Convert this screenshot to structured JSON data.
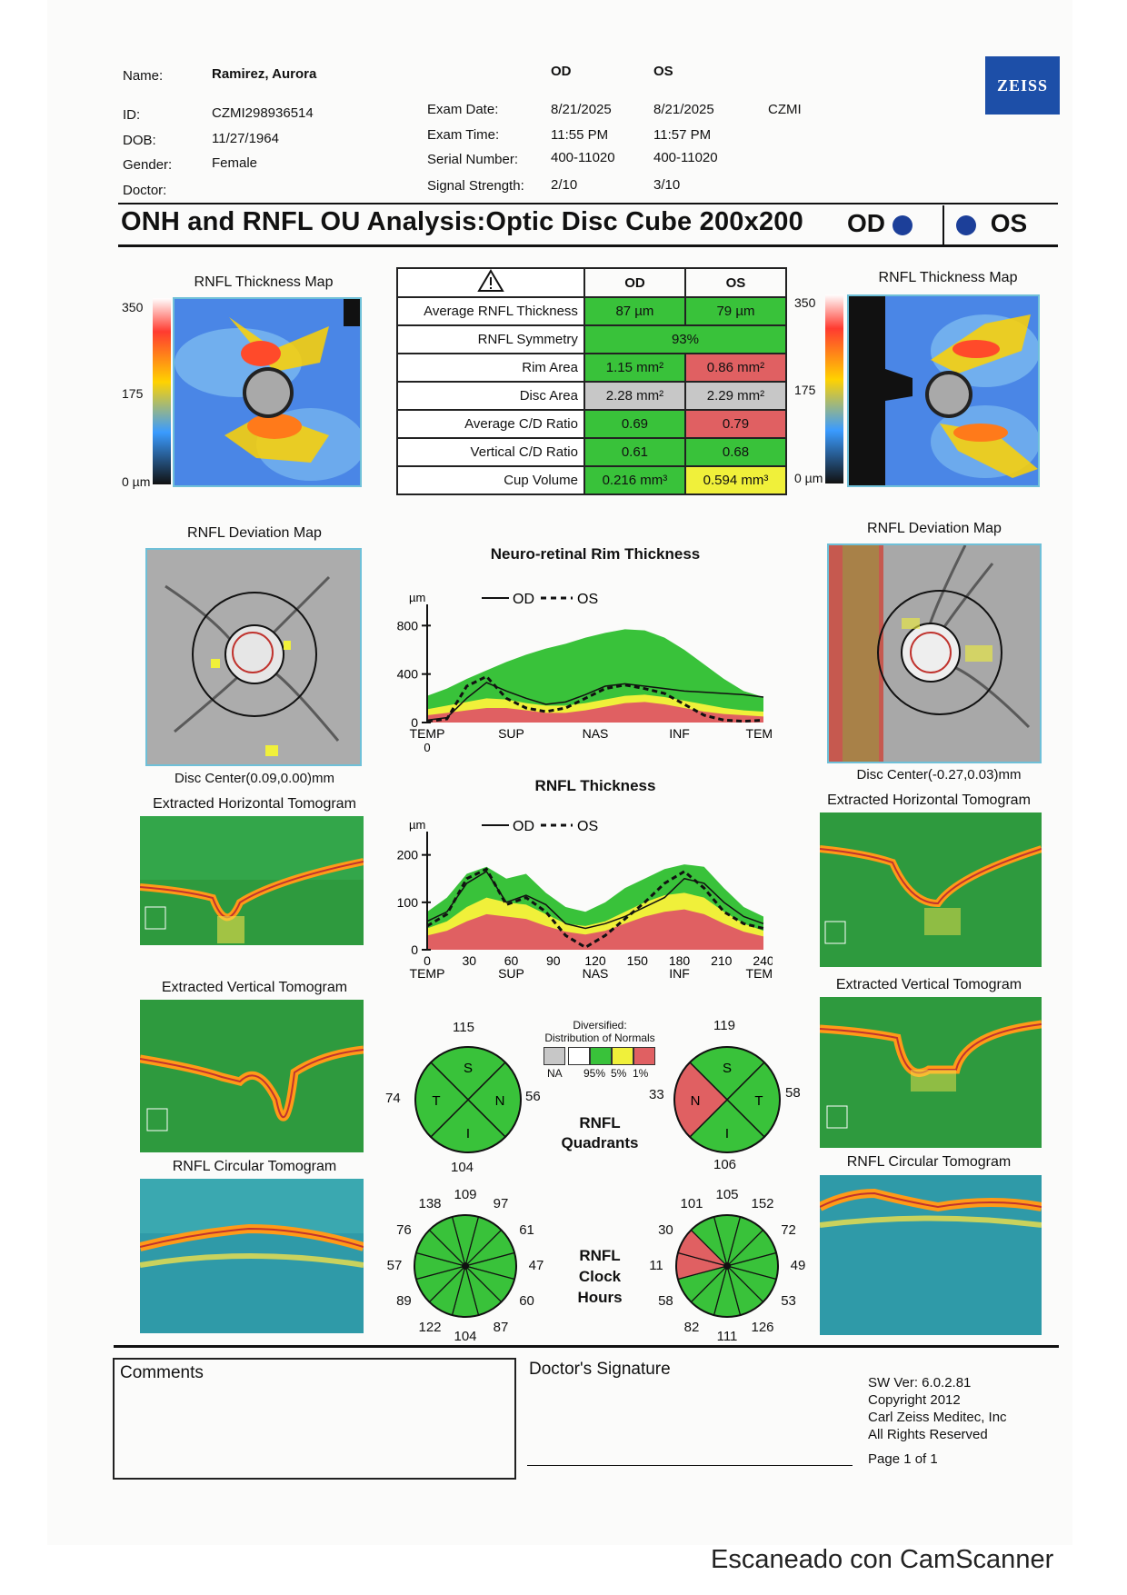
{
  "patient": {
    "name_label": "Name:",
    "name": "Ramirez, Aurora",
    "id_label": "ID:",
    "id": "CZMI298936514",
    "dob_label": "DOB:",
    "dob": "11/27/1964",
    "gender_label": "Gender:",
    "gender": "Female",
    "doctor_label": "Doctor:"
  },
  "exam": {
    "od_header": "OD",
    "os_header": "OS",
    "date_label": "Exam Date:",
    "date_od": "8/21/2025",
    "date_os": "8/21/2025",
    "site": "CZMI",
    "time_label": "Exam Time:",
    "time_od": "11:55 PM",
    "time_os": "11:57 PM",
    "serial_label": "Serial Number:",
    "serial_od": "400-11020",
    "serial_os": "400-11020",
    "signal_label": "Signal Strength:",
    "signal_od": "2/10",
    "signal_os": "3/10"
  },
  "brand": "ZEISS",
  "title": "ONH and RNFL OU Analysis:Optic Disc Cube 200x200",
  "title_od": "OD",
  "title_os": "OS",
  "thickness_map": {
    "title_od": "RNFL Thickness Map",
    "title_os": "RNFL Thickness Map",
    "scale_top": "350",
    "scale_mid": "175",
    "scale_bottom": "0 µm",
    "colors": [
      "#ffffff",
      "#ff3b30",
      "#ffd200",
      "#3a9bff",
      "#111111"
    ]
  },
  "table": {
    "col_od": "OD",
    "col_os": "OS",
    "rows": [
      {
        "label": "Average RNFL Thickness",
        "od": "87 µm",
        "os": "79 µm",
        "od_status": "green",
        "os_status": "green"
      },
      {
        "label": "RNFL Symmetry",
        "both": "93%",
        "status": "green"
      },
      {
        "label": "Rim Area",
        "od": "1.15 mm²",
        "os": "0.86 mm²",
        "od_status": "green",
        "os_status": "red"
      },
      {
        "label": "Disc Area",
        "od": "2.28 mm²",
        "os": "2.29 mm²",
        "od_status": "gray",
        "os_status": "gray"
      },
      {
        "label": "Average C/D Ratio",
        "od": "0.69",
        "os": "0.79",
        "od_status": "green",
        "os_status": "red"
      },
      {
        "label": "Vertical C/D Ratio",
        "od": "0.61",
        "os": "0.68",
        "od_status": "green",
        "os_status": "green"
      },
      {
        "label": "Cup Volume",
        "od": "0.216 mm³",
        "os": "0.594 mm³",
        "od_status": "green",
        "os_status": "yellow"
      }
    ]
  },
  "deviation_map": {
    "title_od": "RNFL Deviation Map",
    "title_os": "RNFL Deviation Map",
    "disc_center_od": "Disc Center(0.09,0.00)mm",
    "disc_center_os": "Disc Center(-0.27,0.03)mm"
  },
  "tomograms": {
    "horizontal_od": "Extracted Horizontal Tomogram",
    "horizontal_os": "Extracted Horizontal Tomogram",
    "vertical_od": "Extracted Vertical Tomogram",
    "vertical_os": "Extracted Vertical Tomogram",
    "circular_od": "RNFL Circular Tomogram",
    "circular_os": "RNFL Circular Tomogram"
  },
  "chart_data": [
    {
      "type": "line",
      "title": "Neuro-retinal Rim Thickness",
      "ylabel": "µm",
      "yticks": [
        "800",
        "400",
        "0"
      ],
      "ylim": [
        0,
        900
      ],
      "xticks": [
        "0",
        "TEMP",
        "SUP",
        "NAS",
        "INF",
        "TEMP"
      ],
      "legend": {
        "od": "OD",
        "os": "OS"
      },
      "normative_bands": {
        "green_upper": [
          220,
          280,
          360,
          430,
          500,
          560,
          610,
          650,
          700,
          740,
          770,
          760,
          700,
          600,
          480,
          360,
          260,
          210
        ],
        "yellow_upper": [
          110,
          140,
          170,
          200,
          190,
          160,
          140,
          140,
          160,
          190,
          220,
          230,
          210,
          180,
          150,
          120,
          100,
          90
        ],
        "red_upper": [
          60,
          80,
          100,
          120,
          120,
          100,
          80,
          80,
          100,
          130,
          160,
          170,
          150,
          120,
          90,
          70,
          60,
          50
        ]
      },
      "series": [
        {
          "name": "OD",
          "values": [
            20,
            40,
            200,
            330,
            260,
            200,
            150,
            170,
            230,
            300,
            320,
            300,
            280,
            260,
            250,
            240,
            230,
            210
          ]
        },
        {
          "name": "OS",
          "values": [
            10,
            30,
            300,
            380,
            200,
            120,
            90,
            120,
            200,
            280,
            310,
            280,
            240,
            150,
            60,
            20,
            10,
            20
          ]
        }
      ]
    },
    {
      "type": "line",
      "title": "RNFL Thickness",
      "ylabel": "µm",
      "yticks": [
        "200",
        "100",
        "0"
      ],
      "ylim": [
        0,
        230
      ],
      "xticks": [
        "0",
        "30",
        "60",
        "90",
        "120",
        "150",
        "180",
        "210",
        "240"
      ],
      "xlabels": [
        "TEMP",
        "SUP",
        "NAS",
        "INF",
        "TEMP"
      ],
      "legend": {
        "od": "OD",
        "os": "OS"
      },
      "normative_bands": {
        "green_upper": [
          80,
          110,
          160,
          175,
          150,
          160,
          120,
          90,
          80,
          100,
          130,
          150,
          170,
          180,
          175,
          130,
          90,
          70
        ],
        "yellow_upper": [
          45,
          60,
          90,
          110,
          100,
          95,
          75,
          55,
          50,
          60,
          80,
          100,
          115,
          120,
          110,
          80,
          55,
          40
        ],
        "red_upper": [
          30,
          40,
          60,
          75,
          70,
          65,
          50,
          38,
          32,
          40,
          55,
          70,
          80,
          85,
          75,
          55,
          38,
          28
        ]
      },
      "series": [
        {
          "name": "OD",
          "values": [
            60,
            80,
            140,
            165,
            100,
            115,
            95,
            55,
            45,
            55,
            70,
            90,
            110,
            150,
            140,
            100,
            70,
            55
          ]
        },
        {
          "name": "OS",
          "values": [
            50,
            75,
            150,
            170,
            95,
            110,
            80,
            30,
            5,
            30,
            65,
            100,
            140,
            165,
            130,
            80,
            55,
            45
          ]
        }
      ]
    }
  ],
  "legend_normals": {
    "title_line1": "Diversified:",
    "title_line2": "Distribution of Normals",
    "labels": [
      "NA",
      "95%",
      "5%",
      "1%"
    ],
    "colors": [
      "#c7c7c7",
      "#ffffff",
      "#39c23a",
      "#f0f03a",
      "#e06062"
    ]
  },
  "quadrants": {
    "title_line1": "RNFL",
    "title_line2": "Quadrants",
    "od": {
      "S": "115",
      "T": "74",
      "N": "56",
      "I": "104",
      "letters": [
        "S",
        "T",
        "N",
        "I"
      ],
      "status": {
        "S": "green",
        "T": "green",
        "N": "green",
        "I": "green"
      }
    },
    "os": {
      "S": "119",
      "T": "58",
      "N": "33",
      "I": "106",
      "letters": [
        "S",
        "N",
        "T",
        "I"
      ],
      "status": {
        "S": "green",
        "T": "green",
        "N": "red",
        "I": "green"
      }
    }
  },
  "clock_hours": {
    "title_line1": "RNFL",
    "title_line2": "Clock",
    "title_line3": "Hours",
    "od": {
      "values": [
        "109",
        "97",
        "61",
        "47",
        "60",
        "87",
        "104",
        "122",
        "89",
        "57",
        "76",
        "138"
      ],
      "red_sectors": []
    },
    "os": {
      "values": [
        "105",
        "152",
        "72",
        "49",
        "53",
        "126",
        "111",
        "82",
        "58",
        "11",
        "30",
        "101"
      ],
      "red_sectors": [
        9,
        10
      ]
    }
  },
  "footer": {
    "comments": "Comments",
    "signature": "Doctor's Signature",
    "sw": "SW Ver: 6.0.2.81",
    "copyright": "Copyright 2012",
    "company": "Carl Zeiss Meditec, Inc",
    "rights": "All Rights Reserved",
    "page": "Page 1 of 1"
  },
  "watermark": "Escaneado con CamScanner"
}
